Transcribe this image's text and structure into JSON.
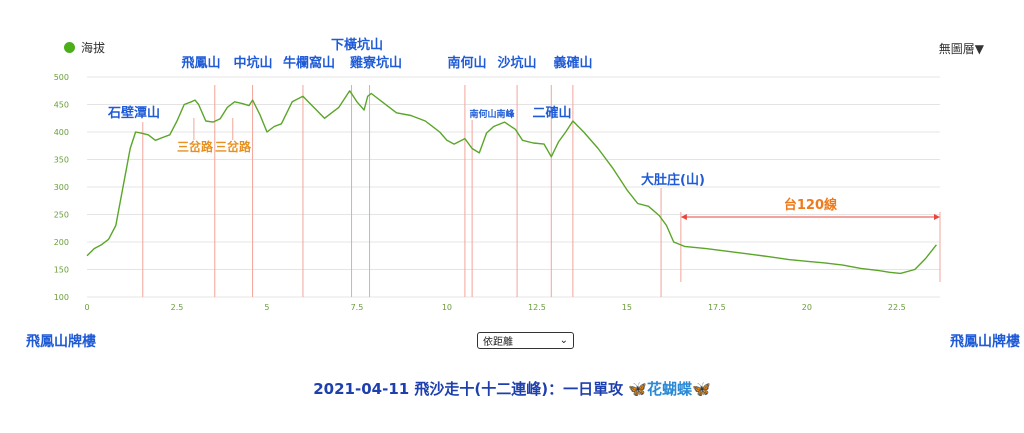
{
  "legend": {
    "series_label": "海拔",
    "color": "#4caf1a"
  },
  "layer_selector": {
    "label": "無圖層▼"
  },
  "endpoints": {
    "start": "飛鳳山牌樓",
    "end": "飛鳳山牌樓"
  },
  "mode_select": {
    "value": "依距離"
  },
  "footer": {
    "title": "2021-04-11 飛沙走十(十二連峰)：一日單攻",
    "suffix_icon": "butterfly-icon",
    "suffix_text": "🦋花蝴蝶🦋"
  },
  "colors": {
    "line": "#5aa629",
    "marker": "#f2a59a",
    "peak_label": "#1f5bd6",
    "junction_label": "#e8901f",
    "highway_label": "#f07a1a",
    "highway_line": "#e8453c",
    "axis_text": "#6a9e3a",
    "grid": "#e4e4e4"
  },
  "chart_data": {
    "type": "line",
    "xlim": [
      0,
      23.7
    ],
    "ylim": [
      100,
      500
    ],
    "x_ticks": [
      "0",
      "2.5",
      "5",
      "7.5",
      "10",
      "12.5",
      "15",
      "17.5",
      "20",
      "22.5"
    ],
    "y_ticks": [
      "100",
      "150",
      "200",
      "250",
      "300",
      "350",
      "400",
      "450",
      "500"
    ],
    "grid": true,
    "series": [
      {
        "name": "海拔",
        "x": [
          0,
          0.2,
          0.4,
          0.6,
          0.8,
          1.0,
          1.2,
          1.35,
          1.5,
          1.7,
          1.9,
          2.1,
          2.3,
          2.5,
          2.7,
          2.9,
          3.0,
          3.1,
          3.3,
          3.5,
          3.7,
          3.9,
          4.1,
          4.3,
          4.5,
          4.6,
          4.8,
          5.0,
          5.2,
          5.4,
          5.7,
          6.0,
          6.3,
          6.6,
          7.0,
          7.2,
          7.3,
          7.5,
          7.7,
          7.8,
          7.9,
          8.2,
          8.6,
          9.0,
          9.4,
          9.8,
          10.0,
          10.2,
          10.5,
          10.7,
          10.9,
          11.1,
          11.3,
          11.6,
          11.9,
          12.1,
          12.4,
          12.7,
          12.9,
          13.1,
          13.3,
          13.5,
          13.8,
          14.2,
          14.6,
          15.0,
          15.3,
          15.6,
          15.9,
          16.1,
          16.3,
          16.6,
          17.2,
          17.8,
          18.4,
          19.0,
          19.5,
          20.0,
          20.5,
          21.0,
          21.5,
          22.0,
          22.3,
          22.6,
          23.0,
          23.3,
          23.6
        ],
        "y": [
          175,
          188,
          195,
          205,
          230,
          300,
          370,
          400,
          398,
          395,
          385,
          390,
          395,
          420,
          450,
          455,
          458,
          450,
          420,
          418,
          424,
          445,
          455,
          452,
          448,
          458,
          432,
          400,
          410,
          415,
          455,
          465,
          445,
          425,
          445,
          465,
          475,
          455,
          440,
          465,
          470,
          455,
          435,
          430,
          420,
          400,
          385,
          378,
          388,
          370,
          362,
          398,
          410,
          418,
          405,
          385,
          380,
          378,
          355,
          382,
          400,
          420,
          400,
          370,
          335,
          295,
          270,
          265,
          248,
          230,
          200,
          192,
          188,
          183,
          178,
          173,
          168,
          165,
          162,
          158,
          152,
          148,
          145,
          143,
          150,
          170,
          195
        ]
      }
    ],
    "peaks": [
      {
        "label": "石壁潭山",
        "x": 1.55
      },
      {
        "label": "飛鳳山",
        "x": 3.55
      },
      {
        "label": "中坑山",
        "x": 4.6
      },
      {
        "label": "牛欄窩山",
        "x": 6.0
      },
      {
        "label": "下橫坑山",
        "x": 7.35
      },
      {
        "label": "雞寮坑山",
        "x": 7.85
      },
      {
        "label": "南何山",
        "x": 10.5
      },
      {
        "label": "南何山南峰",
        "x": 10.7
      },
      {
        "label": "沙坑山",
        "x": 11.95
      },
      {
        "label": "二確山",
        "x": 12.9
      },
      {
        "label": "義確山",
        "x": 13.5
      },
      {
        "label": "大肚庄(山)",
        "x": 15.95
      }
    ],
    "junctions": [
      {
        "label": "三岔路",
        "x": 2.97
      },
      {
        "label": "三岔路",
        "x": 4.05
      }
    ],
    "highway": {
      "label": "台120線",
      "x_start": 16.5,
      "x_end": 23.7
    }
  }
}
